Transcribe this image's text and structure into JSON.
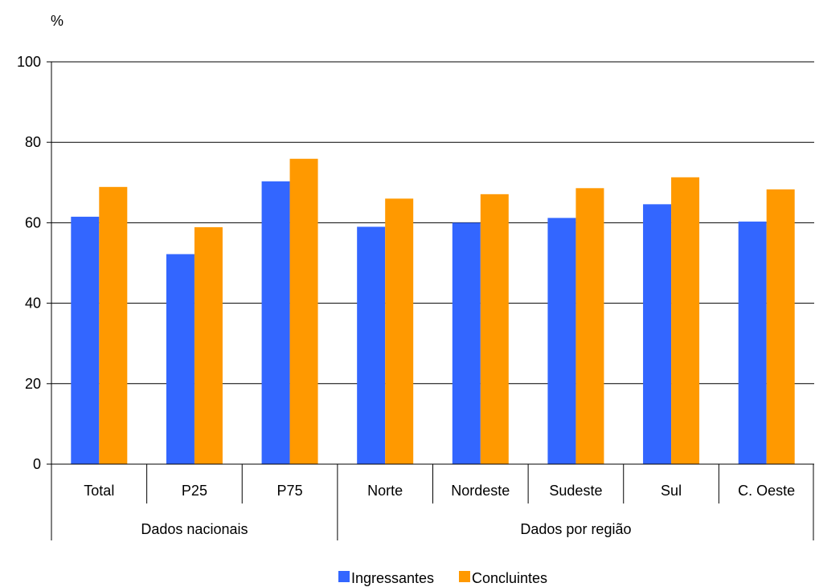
{
  "chart_data": {
    "type": "bar",
    "y_unit_label": "%",
    "ylim": [
      0,
      100
    ],
    "y_ticks": [
      "0",
      "20",
      "40",
      "60",
      "80",
      "100"
    ],
    "categories": [
      "Total",
      "P25",
      "P75",
      "Norte",
      "Nordeste",
      "Sudeste",
      "Sul",
      "C. Oeste"
    ],
    "groups": [
      {
        "label": "Dados nacionais",
        "start": 0,
        "end": 3
      },
      {
        "label": "Dados por região",
        "start": 3,
        "end": 8
      }
    ],
    "series": [
      {
        "name": "Ingressantes",
        "color": "#3366ff",
        "values": [
          61.5,
          52.2,
          70.3,
          59.0,
          60.0,
          61.2,
          64.6,
          60.3
        ]
      },
      {
        "name": "Concluintes",
        "color": "#ff9900",
        "values": [
          68.9,
          58.9,
          75.9,
          66.0,
          67.1,
          68.6,
          71.3,
          68.3
        ]
      }
    ],
    "grid": true,
    "legend_position": "bottom"
  }
}
